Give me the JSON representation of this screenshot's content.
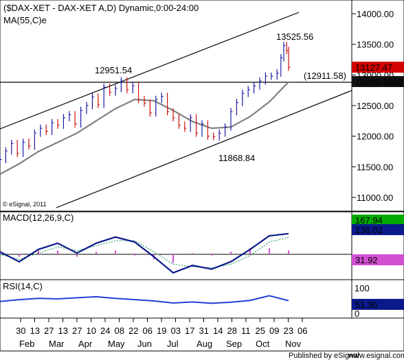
{
  "colors": {
    "background": "#ffffff",
    "panel_border": "#000000",
    "bars": "#111111",
    "up_bar": "#1a1aa6",
    "down_bar": "#cc1111",
    "ma_line": "#808080",
    "macd_line": "#0a1a8a",
    "signal_line": "#2f9e6a",
    "histogram": "#d14fd1",
    "rsi_line": "#1f3fd6",
    "label_red": "#d40000",
    "label_green": "#00aa00",
    "label_blue": "#0a1a8a"
  },
  "header": {
    "title": "($DAX-XET - DAX-XET A,D) Dynamic,0:00-24:00",
    "ma_label": "MA(55,C)e",
    "copyright": "© eSignal, 2011"
  },
  "footer": {
    "published": "Published by eSignal",
    "url": "www.esignal.com"
  },
  "panels": {
    "price": {
      "axis_ticks": [
        "14000.00",
        "13500.00",
        "13000.00",
        "12500.00",
        "12000.00",
        "11500.00",
        "11000.00"
      ],
      "labels": {
        "last_price": "13127.47",
        "ma_value": "12885.3202",
        "level": "(12911.58)",
        "high_label": "13525.56",
        "mid_high_label": "12951.54",
        "low_label": "11868.84"
      }
    },
    "macd": {
      "title": "MACD(12,26,9,C)",
      "labels": {
        "macd": "167.94",
        "signal": "136.02",
        "histogram": "31.92"
      }
    },
    "rsi": {
      "title": "RSI(14,C)",
      "axis_ticks": [
        "100",
        "0"
      ],
      "labels": {
        "rsi": "51.36"
      }
    }
  },
  "x_axis": {
    "day_labels": [
      "30",
      "13",
      "27",
      "13",
      "27",
      "10",
      "24",
      "08",
      "22",
      "06",
      "19",
      "03",
      "17",
      "31",
      "14",
      "28",
      "11",
      "25",
      "09",
      "23",
      "06"
    ],
    "month_labels": [
      "Feb",
      "Mar",
      "Apr",
      "May",
      "Jun",
      "Jul",
      "Aug",
      "Sep",
      "Oct",
      "Nov"
    ]
  },
  "chart_data": {
    "type": "line",
    "series": [
      {
        "name": "Close",
        "x": [
          0,
          12,
          24,
          36,
          48,
          60,
          72,
          84,
          96,
          108,
          120,
          132,
          144,
          156,
          168,
          180,
          192,
          204,
          216,
          228,
          240,
          252,
          264,
          276,
          288,
          300,
          312,
          324,
          336,
          348,
          360,
          372,
          384,
          396,
          408,
          420,
          432,
          444,
          456,
          468,
          480,
          492,
          504,
          516,
          528,
          540,
          552,
          564,
          576,
          584,
          590,
          596,
          600
        ],
        "y": [
          11620,
          11760,
          11880,
          11720,
          11900,
          11840,
          12050,
          12130,
          12080,
          12220,
          12180,
          12300,
          12350,
          12200,
          12420,
          12500,
          12640,
          12520,
          12800,
          12720,
          12780,
          12900,
          12760,
          12820,
          12600,
          12540,
          12380,
          12600,
          12650,
          12400,
          12300,
          12180,
          12130,
          12300,
          12050,
          12200,
          12000,
          11990,
          12050,
          12150,
          12400,
          12550,
          12700,
          12760,
          12820,
          12900,
          12980,
          12980,
          13030,
          13280,
          13480,
          13400,
          13127
        ]
      },
      {
        "name": "MA(55,C)e",
        "x": [
          0,
          40,
          80,
          120,
          160,
          200,
          240,
          280,
          320,
          360,
          400,
          440,
          480,
          520,
          560,
          600
        ],
        "y": [
          11380,
          11550,
          11750,
          11900,
          12050,
          12250,
          12450,
          12600,
          12580,
          12420,
          12240,
          12130,
          12150,
          12320,
          12560,
          12885
        ]
      }
    ],
    "channel": [
      {
        "name": "upper",
        "points": [
          [
            0,
            12000
          ],
          [
            618,
            14200
          ]
        ]
      },
      {
        "name": "lower",
        "points": [
          [
            60,
            10880
          ],
          [
            700,
            12900
          ]
        ]
      }
    ],
    "macd": {
      "x": [
        0,
        40,
        80,
        120,
        160,
        200,
        240,
        280,
        320,
        360,
        400,
        440,
        480,
        520,
        560,
        600
      ],
      "macd": [
        20,
        -60,
        40,
        90,
        10,
        90,
        140,
        100,
        -20,
        -150,
        -90,
        -120,
        -60,
        40,
        150,
        168
      ],
      "signal": [
        0,
        -40,
        10,
        60,
        30,
        70,
        110,
        110,
        20,
        -80,
        -100,
        -110,
        -80,
        -10,
        100,
        136
      ],
      "histogram": [
        20,
        -20,
        30,
        30,
        -20,
        20,
        30,
        -10,
        -40,
        -70,
        10,
        -10,
        20,
        50,
        50,
        32
      ]
    },
    "rsi": {
      "x": [
        0,
        40,
        80,
        120,
        160,
        200,
        240,
        280,
        320,
        360,
        400,
        440,
        480,
        520,
        560,
        600
      ],
      "values": [
        48,
        55,
        60,
        58,
        62,
        66,
        60,
        55,
        50,
        42,
        46,
        41,
        45,
        52,
        70,
        51
      ]
    }
  }
}
